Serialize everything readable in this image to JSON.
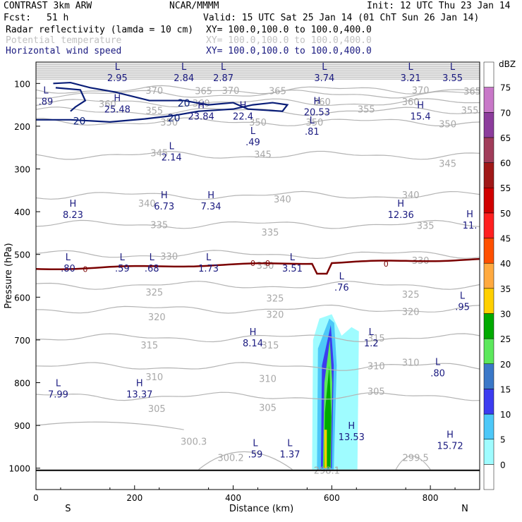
{
  "header": {
    "model": "CONTRAST  3km ARW",
    "org": "NCAR/MMMM",
    "init": "Init: 12 UTC Thu 23 Jan 14",
    "fcst_label": "Fcst:",
    "fcst_value": "51 h",
    "valid": "Valid: 15 UTC Sat 25 Jan 14 (01 ChT Sun 26 Jan 14)"
  },
  "legend": [
    {
      "label": "Radar reflectivity (lamda = 10 cm)",
      "xy": "XY= 100.0,100.0 to 100.0,400.0",
      "color": "#000000"
    },
    {
      "label": "Potential temperature",
      "xy": "XY= 100.0,100.0 to 100.0,400.0",
      "color": "#c0c0c0"
    },
    {
      "label": "Horizontal wind speed",
      "xy": "XY= 100.0,100.0 to 100.0,400.0",
      "color": "#1a1a80"
    }
  ],
  "chart_data": {
    "type": "cross-section",
    "xlabel": "Distance (km)",
    "ylabel": "Pressure (hPa)",
    "xlim": [
      0,
      900
    ],
    "ylim": [
      1050,
      50
    ],
    "x_ticks": [
      0,
      200,
      400,
      600,
      800
    ],
    "x_tick_labels": [
      "0",
      "200",
      "400",
      "600",
      "800"
    ],
    "y_ticks": [
      100,
      200,
      300,
      400,
      500,
      600,
      700,
      800,
      900,
      1000
    ],
    "y_tick_labels": [
      "100",
      "200",
      "300",
      "400",
      "500",
      "600",
      "700",
      "800",
      "900",
      "1000"
    ],
    "left_end_label": "S",
    "right_end_label": "N",
    "colorbar": {
      "unit": "dBZ",
      "levels": [
        "0",
        "5",
        "10",
        "15",
        "20",
        "25",
        "30",
        "35",
        "40",
        "45",
        "50",
        "55",
        "60",
        "65",
        "70",
        "75"
      ],
      "colors": [
        "#ffffff",
        "#9ffcff",
        "#4dc8f8",
        "#3c3cf0",
        "#3a78c8",
        "#5ce85c",
        "#00aa00",
        "#ffd000",
        "#ffaa40",
        "#ff5000",
        "#ff2020",
        "#d00000",
        "#a01818",
        "#a03c5a",
        "#8c3c9c",
        "#c878c8",
        "#ffffff"
      ]
    },
    "theta_contours": [
      {
        "value": "370",
        "p": 115
      },
      {
        "value": "365",
        "p": 125
      },
      {
        "value": "360",
        "p": 145
      },
      {
        "value": "355",
        "p": 165
      },
      {
        "value": "350",
        "p": 190
      },
      {
        "value": "345",
        "p": 268
      },
      {
        "value": "340",
        "p": 362
      },
      {
        "value": "335",
        "p": 430
      },
      {
        "value": "330",
        "p": 500
      },
      {
        "value": "325",
        "p": 572
      },
      {
        "value": "320",
        "p": 628
      },
      {
        "value": "315",
        "p": 695
      },
      {
        "value": "310",
        "p": 762
      },
      {
        "value": "305",
        "p": 832
      }
    ],
    "theta_labels": [
      {
        "text": "370",
        "x": 240,
        "p": 116
      },
      {
        "text": "370",
        "x": 395,
        "p": 116
      },
      {
        "text": "370",
        "x": 780,
        "p": 115
      },
      {
        "text": "365",
        "x": 490,
        "p": 117
      },
      {
        "text": "365",
        "x": 340,
        "p": 117
      },
      {
        "text": "365",
        "x": 885,
        "p": 118
      },
      {
        "text": "360",
        "x": 145,
        "p": 147
      },
      {
        "text": "360",
        "x": 335,
        "p": 146
      },
      {
        "text": "360",
        "x": 580,
        "p": 142
      },
      {
        "text": "360",
        "x": 760,
        "p": 142
      },
      {
        "text": "355",
        "x": 240,
        "p": 163
      },
      {
        "text": "355",
        "x": 670,
        "p": 160
      },
      {
        "text": "355",
        "x": 880,
        "p": 162
      },
      {
        "text": "350",
        "x": 270,
        "p": 190
      },
      {
        "text": "350",
        "x": 450,
        "p": 190
      },
      {
        "text": "350",
        "x": 565,
        "p": 190
      },
      {
        "text": "350",
        "x": 835,
        "p": 194
      },
      {
        "text": "345",
        "x": 250,
        "p": 262
      },
      {
        "text": "345",
        "x": 460,
        "p": 265
      },
      {
        "text": "345",
        "x": 835,
        "p": 287
      },
      {
        "text": "340",
        "x": 225,
        "p": 380
      },
      {
        "text": "340",
        "x": 500,
        "p": 370
      },
      {
        "text": "340",
        "x": 760,
        "p": 360
      },
      {
        "text": "335",
        "x": 250,
        "p": 430
      },
      {
        "text": "335",
        "x": 475,
        "p": 448
      },
      {
        "text": "335",
        "x": 790,
        "p": 432
      },
      {
        "text": "330",
        "x": 270,
        "p": 504
      },
      {
        "text": "330",
        "x": 465,
        "p": 525
      },
      {
        "text": "330",
        "x": 780,
        "p": 514
      },
      {
        "text": "325",
        "x": 240,
        "p": 588
      },
      {
        "text": "325",
        "x": 485,
        "p": 602
      },
      {
        "text": "325",
        "x": 760,
        "p": 593
      },
      {
        "text": "320",
        "x": 245,
        "p": 646
      },
      {
        "text": "320",
        "x": 485,
        "p": 640
      },
      {
        "text": "320",
        "x": 760,
        "p": 633
      },
      {
        "text": "315",
        "x": 230,
        "p": 712
      },
      {
        "text": "315",
        "x": 475,
        "p": 712
      },
      {
        "text": "315",
        "x": 690,
        "p": 695
      },
      {
        "text": "310",
        "x": 240,
        "p": 786
      },
      {
        "text": "310",
        "x": 470,
        "p": 790
      },
      {
        "text": "310",
        "x": 690,
        "p": 760
      },
      {
        "text": "310",
        "x": 760,
        "p": 752
      },
      {
        "text": "305",
        "x": 245,
        "p": 860
      },
      {
        "text": "305",
        "x": 470,
        "p": 858
      },
      {
        "text": "305",
        "x": 690,
        "p": 820
      },
      {
        "text": "300.3",
        "x": 320,
        "p": 937
      },
      {
        "text": "300.2",
        "x": 395,
        "p": 975
      },
      {
        "text": "299.5",
        "x": 770,
        "p": 975
      },
      {
        "text": "298.1",
        "x": 590,
        "p": 1005
      }
    ],
    "wind_contour_labels": [
      {
        "text": "20",
        "x": 88,
        "p": 188
      },
      {
        "text": "20",
        "x": 300,
        "p": 146
      },
      {
        "text": "20",
        "x": 280,
        "p": 180
      }
    ],
    "zero_contour_labels": [
      {
        "text": "0",
        "x": 100,
        "p": 534
      },
      {
        "text": "0",
        "x": 440,
        "p": 520
      },
      {
        "text": "0",
        "x": 470,
        "p": 520
      },
      {
        "text": "0",
        "x": 710,
        "p": 522
      }
    ],
    "extrema": [
      {
        "kind": "L",
        "value": "2.95",
        "x": 165,
        "p": 75
      },
      {
        "kind": "L",
        "value": "2.84",
        "x": 300,
        "p": 75
      },
      {
        "kind": "L",
        "value": "2.87",
        "x": 380,
        "p": 75
      },
      {
        "kind": "L",
        "value": "3.74",
        "x": 585,
        "p": 75
      },
      {
        "kind": "L",
        "value": "3.21",
        "x": 760,
        "p": 75
      },
      {
        "kind": "L",
        "value": "3.55",
        "x": 845,
        "p": 75
      },
      {
        "kind": "L",
        "value": ".89",
        "x": 20,
        "p": 130
      },
      {
        "kind": "H",
        "value": "25.48",
        "x": 165,
        "p": 148
      },
      {
        "kind": "H",
        "value": "23.84",
        "x": 335,
        "p": 165
      },
      {
        "kind": "H",
        "value": "22.4",
        "x": 420,
        "p": 165
      },
      {
        "kind": "H",
        "value": "20.53",
        "x": 570,
        "p": 155
      },
      {
        "kind": "H",
        "value": "15.4",
        "x": 780,
        "p": 165
      },
      {
        "kind": "L",
        "value": ".81",
        "x": 560,
        "p": 200
      },
      {
        "kind": "L",
        "value": ".49",
        "x": 440,
        "p": 225
      },
      {
        "kind": "L",
        "value": "2.14",
        "x": 275,
        "p": 260
      },
      {
        "kind": "H",
        "value": "8.23",
        "x": 75,
        "p": 395
      },
      {
        "kind": "H",
        "value": "6.73",
        "x": 260,
        "p": 375
      },
      {
        "kind": "H",
        "value": "7.34",
        "x": 355,
        "p": 375
      },
      {
        "kind": "H",
        "value": "12.36",
        "x": 740,
        "p": 395
      },
      {
        "kind": "H",
        "value": "11.",
        "x": 880,
        "p": 420
      },
      {
        "kind": "L",
        "value": ".80",
        "x": 65,
        "p": 520
      },
      {
        "kind": "L",
        "value": ".59",
        "x": 175,
        "p": 520
      },
      {
        "kind": "L",
        "value": ".68",
        "x": 235,
        "p": 520
      },
      {
        "kind": "L",
        "value": "1.73",
        "x": 350,
        "p": 520
      },
      {
        "kind": "L",
        "value": "3.51",
        "x": 520,
        "p": 520
      },
      {
        "kind": "L",
        "value": ".76",
        "x": 620,
        "p": 565
      },
      {
        "kind": "L",
        "value": ".95",
        "x": 865,
        "p": 610
      },
      {
        "kind": "H",
        "value": "8.14",
        "x": 440,
        "p": 695
      },
      {
        "kind": "L",
        "value": "1.2",
        "x": 680,
        "p": 695
      },
      {
        "kind": "L",
        "value": ".80",
        "x": 815,
        "p": 765
      },
      {
        "kind": "L",
        "value": "7.99",
        "x": 45,
        "p": 815
      },
      {
        "kind": "H",
        "value": "13.37",
        "x": 210,
        "p": 815
      },
      {
        "kind": "H",
        "value": "13.53",
        "x": 640,
        "p": 915
      },
      {
        "kind": "H",
        "value": "15.72",
        "x": 840,
        "p": 935
      },
      {
        "kind": "L",
        "value": ".59",
        "x": 445,
        "p": 955
      },
      {
        "kind": "L",
        "value": "1.37",
        "x": 515,
        "p": 955
      }
    ],
    "reflectivity_core": {
      "x_range": [
        560,
        655
      ],
      "p_top": 620,
      "p_bottom": 1005,
      "max_dbz": 35
    }
  }
}
